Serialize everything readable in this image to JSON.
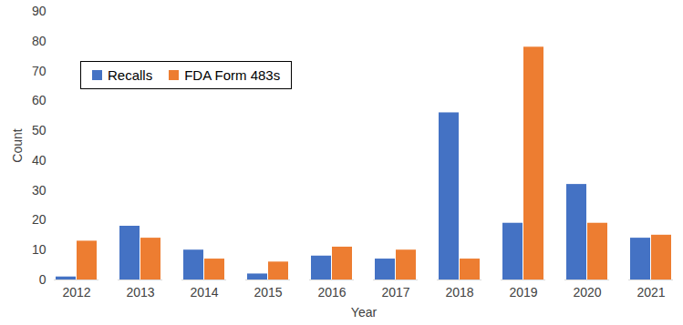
{
  "chart_data": {
    "type": "bar",
    "xlabel": "Year",
    "ylabel": "Count",
    "categories": [
      "2012",
      "2013",
      "2014",
      "2015",
      "2016",
      "2017",
      "2018",
      "2019",
      "2020",
      "2021"
    ],
    "series": [
      {
        "name": "Recalls",
        "color": "#4472c4",
        "values": [
          1,
          18,
          10,
          2,
          8,
          7,
          56,
          19,
          32,
          14
        ]
      },
      {
        "name": "FDA Form 483s",
        "color": "#ed7d31",
        "values": [
          13,
          14,
          7,
          6,
          11,
          10,
          7,
          78,
          19,
          15
        ]
      }
    ],
    "ylim": [
      0,
      90
    ],
    "yticks": [
      0,
      10,
      20,
      30,
      40,
      50,
      60,
      70,
      80,
      90
    ],
    "grid": false,
    "legend": "upper left"
  }
}
